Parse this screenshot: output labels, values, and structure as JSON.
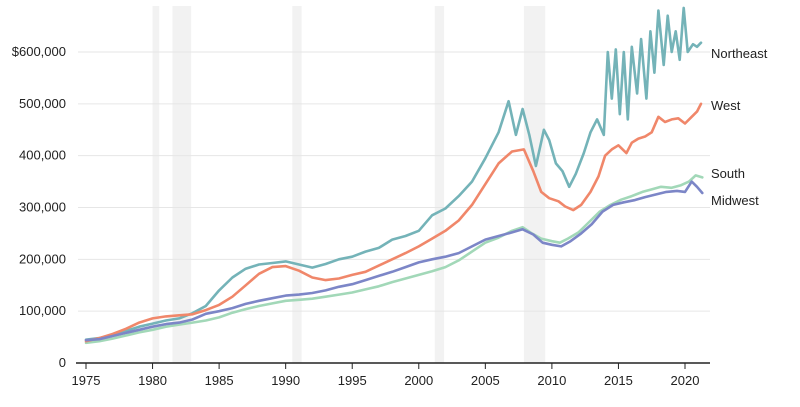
{
  "chart_data": {
    "type": "line",
    "title": "",
    "xlabel": "",
    "ylabel": "",
    "xlim": [
      1975,
      2021.5
    ],
    "ylim": [
      0,
      690000
    ],
    "grid": "horizontal",
    "legend": "right-of-lines",
    "x_ticks": [
      1975,
      1980,
      1985,
      1990,
      1995,
      2000,
      2005,
      2010,
      2015,
      2020
    ],
    "x_tick_labels": [
      "1975",
      "1980",
      "1985",
      "1990",
      "1995",
      "2000",
      "2005",
      "2010",
      "2015",
      "2020"
    ],
    "y_ticks": [
      0,
      100000,
      200000,
      300000,
      400000,
      500000,
      600000
    ],
    "y_tick_labels": [
      "0",
      "100,000",
      "200,000",
      "300,000",
      "400,000",
      "500,000",
      "$600,000"
    ],
    "recessions": [
      [
        1980.0,
        1980.5
      ],
      [
        1981.5,
        1982.9
      ],
      [
        1990.5,
        1991.2
      ],
      [
        2001.2,
        2001.9
      ],
      [
        2007.9,
        2009.5
      ]
    ],
    "colors": {
      "Northeast": "#74b3b8",
      "West": "#f0876a",
      "South": "#a2d8b8",
      "Midwest": "#7c86c7",
      "recession": "#f2f2f2",
      "grid": "#e6e6e6",
      "axis": "#222222"
    },
    "series": [
      {
        "name": "Northeast",
        "points": [
          [
            1975,
            45000
          ],
          [
            1976,
            48000
          ],
          [
            1977,
            54000
          ],
          [
            1978,
            62000
          ],
          [
            1979,
            70000
          ],
          [
            1980,
            76000
          ],
          [
            1981,
            82000
          ],
          [
            1982,
            86000
          ],
          [
            1983,
            96000
          ],
          [
            1984,
            110000
          ],
          [
            1985,
            140000
          ],
          [
            1986,
            165000
          ],
          [
            1987,
            182000
          ],
          [
            1988,
            190000
          ],
          [
            1989,
            193000
          ],
          [
            1990,
            196000
          ],
          [
            1991,
            190000
          ],
          [
            1992,
            184000
          ],
          [
            1993,
            191000
          ],
          [
            1994,
            200000
          ],
          [
            1995,
            205000
          ],
          [
            1996,
            215000
          ],
          [
            1997,
            222000
          ],
          [
            1998,
            238000
          ],
          [
            1999,
            245000
          ],
          [
            2000,
            255000
          ],
          [
            2001,
            285000
          ],
          [
            2002,
            298000
          ],
          [
            2003,
            322000
          ],
          [
            2004,
            350000
          ],
          [
            2005,
            395000
          ],
          [
            2006,
            445000
          ],
          [
            2006.75,
            505000
          ],
          [
            2007.3,
            440000
          ],
          [
            2007.8,
            490000
          ],
          [
            2008.3,
            440000
          ],
          [
            2008.8,
            380000
          ],
          [
            2009.4,
            450000
          ],
          [
            2009.8,
            430000
          ],
          [
            2010.3,
            385000
          ],
          [
            2010.8,
            370000
          ],
          [
            2011.3,
            340000
          ],
          [
            2011.8,
            365000
          ],
          [
            2012.4,
            405000
          ],
          [
            2012.9,
            445000
          ],
          [
            2013.4,
            470000
          ],
          [
            2013.9,
            440000
          ],
          [
            2014.2,
            600000
          ],
          [
            2014.5,
            510000
          ],
          [
            2014.8,
            605000
          ],
          [
            2015.1,
            480000
          ],
          [
            2015.4,
            600000
          ],
          [
            2015.7,
            470000
          ],
          [
            2016,
            610000
          ],
          [
            2016.4,
            520000
          ],
          [
            2016.7,
            625000
          ],
          [
            2017.1,
            510000
          ],
          [
            2017.4,
            640000
          ],
          [
            2017.7,
            560000
          ],
          [
            2018,
            680000
          ],
          [
            2018.4,
            575000
          ],
          [
            2018.7,
            670000
          ],
          [
            2019,
            600000
          ],
          [
            2019.3,
            640000
          ],
          [
            2019.6,
            585000
          ],
          [
            2019.9,
            685000
          ],
          [
            2020.2,
            600000
          ],
          [
            2020.6,
            615000
          ],
          [
            2020.9,
            610000
          ],
          [
            2021.2,
            618000
          ]
        ]
      },
      {
        "name": "West",
        "points": [
          [
            1975,
            42000
          ],
          [
            1976,
            48000
          ],
          [
            1977,
            56000
          ],
          [
            1978,
            66000
          ],
          [
            1979,
            78000
          ],
          [
            1980,
            86000
          ],
          [
            1981,
            90000
          ],
          [
            1982,
            92000
          ],
          [
            1983,
            94000
          ],
          [
            1984,
            102000
          ],
          [
            1985,
            112000
          ],
          [
            1986,
            128000
          ],
          [
            1987,
            150000
          ],
          [
            1988,
            172000
          ],
          [
            1989,
            185000
          ],
          [
            1990,
            187000
          ],
          [
            1991,
            178000
          ],
          [
            1992,
            165000
          ],
          [
            1993,
            160000
          ],
          [
            1994,
            163000
          ],
          [
            1995,
            170000
          ],
          [
            1996,
            176000
          ],
          [
            1997,
            188000
          ],
          [
            1998,
            200000
          ],
          [
            1999,
            212000
          ],
          [
            2000,
            225000
          ],
          [
            2001,
            240000
          ],
          [
            2002,
            255000
          ],
          [
            2003,
            275000
          ],
          [
            2004,
            305000
          ],
          [
            2005,
            345000
          ],
          [
            2006,
            385000
          ],
          [
            2007,
            408000
          ],
          [
            2007.9,
            412000
          ],
          [
            2008.6,
            370000
          ],
          [
            2009.2,
            330000
          ],
          [
            2009.8,
            318000
          ],
          [
            2010.5,
            312000
          ],
          [
            2011,
            302000
          ],
          [
            2011.6,
            295000
          ],
          [
            2012.2,
            305000
          ],
          [
            2012.9,
            330000
          ],
          [
            2013.5,
            360000
          ],
          [
            2014,
            400000
          ],
          [
            2014.5,
            412000
          ],
          [
            2015,
            420000
          ],
          [
            2015.6,
            405000
          ],
          [
            2016,
            425000
          ],
          [
            2016.5,
            433000
          ],
          [
            2017,
            437000
          ],
          [
            2017.5,
            445000
          ],
          [
            2018,
            475000
          ],
          [
            2018.5,
            465000
          ],
          [
            2019,
            470000
          ],
          [
            2019.5,
            472000
          ],
          [
            2020,
            462000
          ],
          [
            2020.5,
            475000
          ],
          [
            2020.9,
            485000
          ],
          [
            2021.2,
            500000
          ]
        ]
      },
      {
        "name": "South",
        "points": [
          [
            1975,
            39000
          ],
          [
            1976,
            42000
          ],
          [
            1977,
            47000
          ],
          [
            1978,
            53000
          ],
          [
            1979,
            59000
          ],
          [
            1980,
            64000
          ],
          [
            1981,
            70000
          ],
          [
            1982,
            74000
          ],
          [
            1983,
            78000
          ],
          [
            1984,
            82000
          ],
          [
            1985,
            88000
          ],
          [
            1986,
            97000
          ],
          [
            1987,
            104000
          ],
          [
            1988,
            110000
          ],
          [
            1989,
            115000
          ],
          [
            1990,
            120000
          ],
          [
            1991,
            122000
          ],
          [
            1992,
            124000
          ],
          [
            1993,
            128000
          ],
          [
            1994,
            132000
          ],
          [
            1995,
            136000
          ],
          [
            1996,
            142000
          ],
          [
            1997,
            148000
          ],
          [
            1998,
            156000
          ],
          [
            1999,
            163000
          ],
          [
            2000,
            170000
          ],
          [
            2001,
            177000
          ],
          [
            2002,
            185000
          ],
          [
            2003,
            198000
          ],
          [
            2004,
            215000
          ],
          [
            2005,
            232000
          ],
          [
            2006,
            242000
          ],
          [
            2007,
            255000
          ],
          [
            2007.8,
            262000
          ],
          [
            2008.5,
            250000
          ],
          [
            2009.2,
            240000
          ],
          [
            2010,
            235000
          ],
          [
            2010.6,
            232000
          ],
          [
            2011.2,
            240000
          ],
          [
            2012,
            252000
          ],
          [
            2012.8,
            272000
          ],
          [
            2013.6,
            292000
          ],
          [
            2014.4,
            305000
          ],
          [
            2015.2,
            315000
          ],
          [
            2016,
            322000
          ],
          [
            2016.8,
            330000
          ],
          [
            2017.5,
            335000
          ],
          [
            2018.2,
            340000
          ],
          [
            2019,
            338000
          ],
          [
            2019.7,
            343000
          ],
          [
            2020.3,
            350000
          ],
          [
            2020.8,
            362000
          ],
          [
            2021.3,
            358000
          ]
        ]
      },
      {
        "name": "Midwest",
        "points": [
          [
            1975,
            44000
          ],
          [
            1976,
            46000
          ],
          [
            1977,
            52000
          ],
          [
            1978,
            58000
          ],
          [
            1979,
            64000
          ],
          [
            1980,
            70000
          ],
          [
            1981,
            75000
          ],
          [
            1982,
            78000
          ],
          [
            1983,
            84000
          ],
          [
            1984,
            95000
          ],
          [
            1985,
            100000
          ],
          [
            1986,
            106000
          ],
          [
            1987,
            114000
          ],
          [
            1988,
            120000
          ],
          [
            1989,
            125000
          ],
          [
            1990,
            130000
          ],
          [
            1991,
            132000
          ],
          [
            1992,
            135000
          ],
          [
            1993,
            140000
          ],
          [
            1994,
            147000
          ],
          [
            1995,
            152000
          ],
          [
            1996,
            160000
          ],
          [
            1997,
            168000
          ],
          [
            1998,
            176000
          ],
          [
            1999,
            185000
          ],
          [
            2000,
            194000
          ],
          [
            2001,
            200000
          ],
          [
            2002,
            205000
          ],
          [
            2003,
            212000
          ],
          [
            2004,
            225000
          ],
          [
            2005,
            238000
          ],
          [
            2006,
            245000
          ],
          [
            2007,
            252000
          ],
          [
            2007.8,
            258000
          ],
          [
            2008.6,
            248000
          ],
          [
            2009.3,
            232000
          ],
          [
            2010,
            228000
          ],
          [
            2010.7,
            225000
          ],
          [
            2011.4,
            235000
          ],
          [
            2012.2,
            250000
          ],
          [
            2013,
            268000
          ],
          [
            2013.8,
            292000
          ],
          [
            2014.6,
            305000
          ],
          [
            2015.4,
            310000
          ],
          [
            2016.2,
            314000
          ],
          [
            2017,
            320000
          ],
          [
            2017.8,
            325000
          ],
          [
            2018.6,
            330000
          ],
          [
            2019.4,
            332000
          ],
          [
            2020,
            330000
          ],
          [
            2020.5,
            350000
          ],
          [
            2020.9,
            340000
          ],
          [
            2021.3,
            328000
          ]
        ]
      }
    ]
  }
}
